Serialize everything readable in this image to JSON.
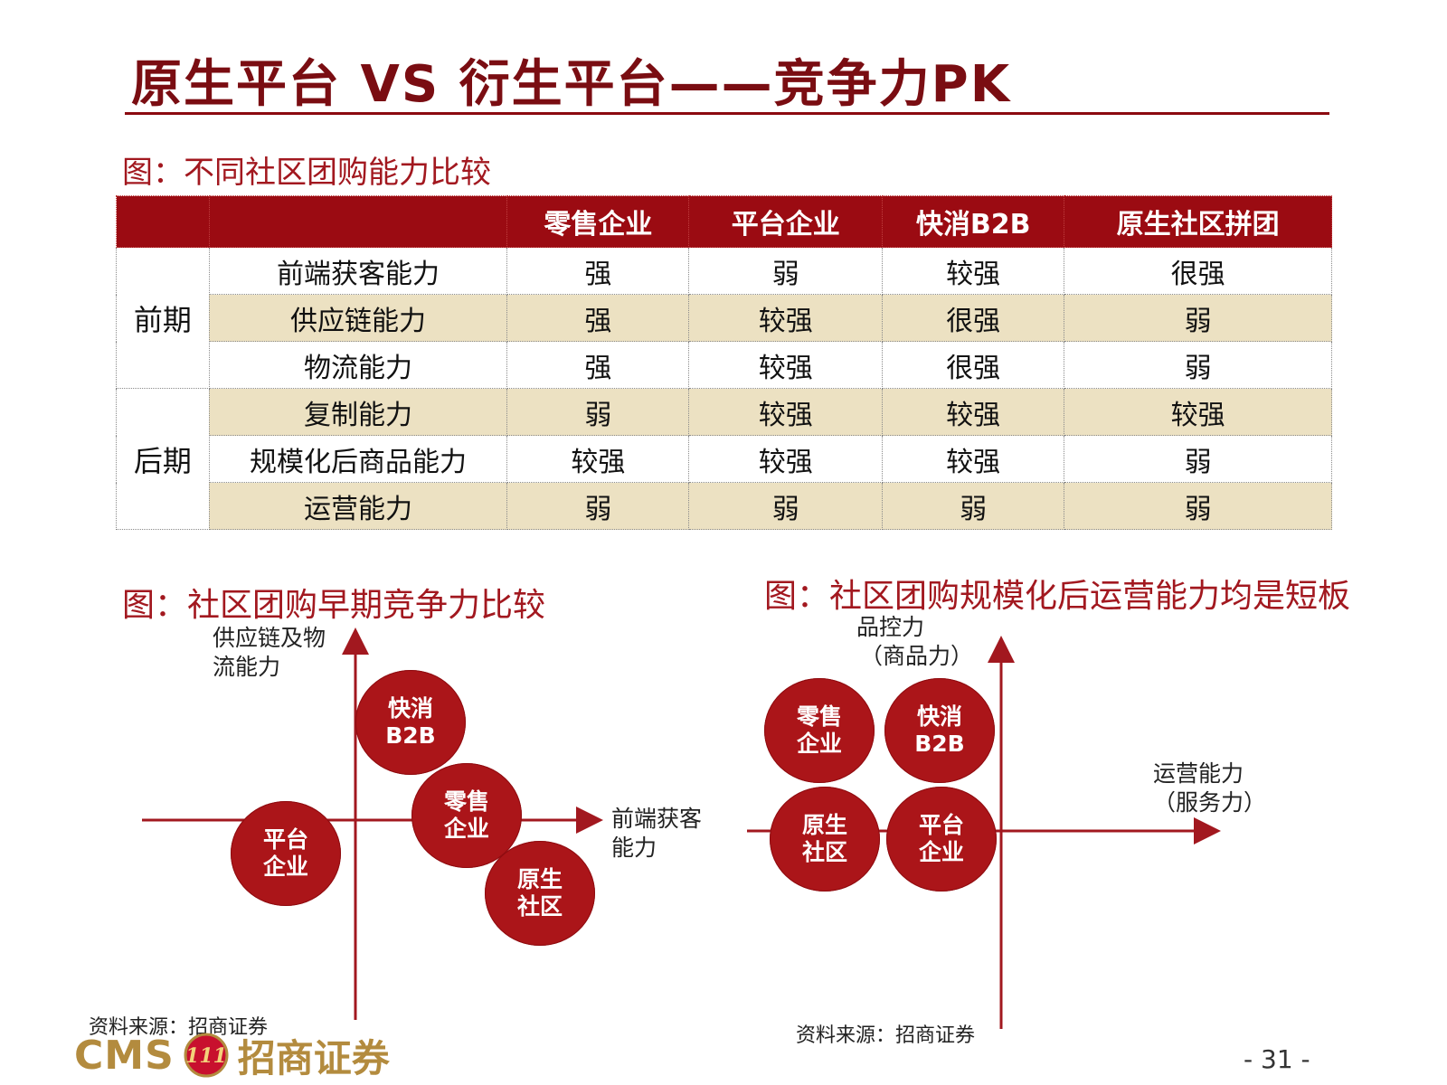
{
  "title": "原生平台 VS 衍生平台——竞争力PK",
  "table_caption": "图：不同社区团购能力比较",
  "table": {
    "columns": [
      "零售企业",
      "平台企业",
      "快消B2B",
      "原生社区拼团"
    ],
    "groups": [
      {
        "stage": "前期",
        "rows": [
          {
            "label": "前端获客能力",
            "values": [
              "强",
              "弱",
              "较强",
              "很强"
            ]
          },
          {
            "label": "供应链能力",
            "values": [
              "强",
              "较强",
              "很强",
              "弱"
            ]
          },
          {
            "label": "物流能力",
            "values": [
              "强",
              "较强",
              "很强",
              "弱"
            ]
          }
        ]
      },
      {
        "stage": "后期",
        "rows": [
          {
            "label": "复制能力",
            "values": [
              "弱",
              "较强",
              "较强",
              "较强"
            ]
          },
          {
            "label": "规模化后商品能力",
            "values": [
              "较强",
              "较强",
              "较强",
              "弱"
            ]
          },
          {
            "label": "运营能力",
            "values": [
              "弱",
              "弱",
              "弱",
              "弱"
            ]
          }
        ]
      }
    ]
  },
  "diagram_left": {
    "caption": "图：社区团购早期竞争力比较",
    "y_label_1": "供应链及物",
    "y_label_2": "流能力",
    "x_label_1": "前端获客",
    "x_label_2": "能力",
    "bubbles": {
      "b2b": {
        "line1": "快消",
        "line2": "B2B"
      },
      "retail": {
        "line1": "零售",
        "line2": "企业"
      },
      "platform": {
        "line1": "平台",
        "line2": "企业"
      },
      "native": {
        "line1": "原生",
        "line2": "社区"
      }
    },
    "source": "资料来源：招商证券"
  },
  "diagram_right": {
    "caption": "图：社区团购规模化后运营能力均是短板",
    "y_label_1": "品控力",
    "y_label_2": "（商品力）",
    "x_label_1": "运营能力",
    "x_label_2": "（服务力）",
    "bubbles": {
      "retail": {
        "line1": "零售",
        "line2": "企业"
      },
      "b2b": {
        "line1": "快消",
        "line2": "B2B"
      },
      "native": {
        "line1": "原生",
        "line2": "社区"
      },
      "platform": {
        "line1": "平台",
        "line2": "企业"
      }
    },
    "source": "资料来源：招商证券"
  },
  "footer": {
    "logo_latin": "CMS",
    "logo_badge": "111",
    "logo_chinese": "招商证券",
    "page_number": "- 31 -"
  },
  "colors": {
    "brand_red": "#9b0b12",
    "bubble_red": "#ab1519",
    "row_shade": "#ece1c2",
    "logo_gold": "#b38b3e"
  }
}
